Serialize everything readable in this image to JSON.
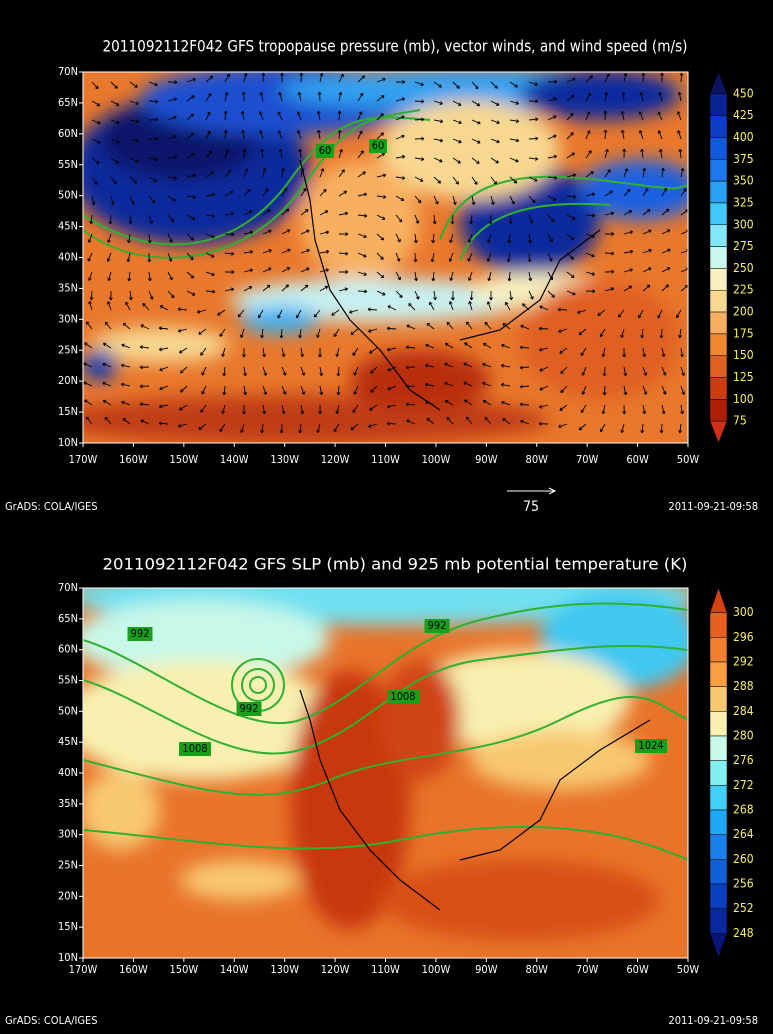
{
  "panels": [
    {
      "title": "2011092112F042 GFS tropopause pressure (mb), vector winds, and wind speed (m/s)",
      "lat_labels": [
        "70N",
        "65N",
        "60N",
        "55N",
        "50N",
        "45N",
        "40N",
        "35N",
        "30N",
        "25N",
        "20N",
        "15N",
        "10N"
      ],
      "lon_labels": [
        "170W",
        "160W",
        "150W",
        "140W",
        "130W",
        "120W",
        "110W",
        "100W",
        "90W",
        "80W",
        "70W",
        "60W",
        "50W"
      ],
      "colorbar_labels": [
        450,
        425,
        400,
        375,
        350,
        325,
        300,
        275,
        250,
        225,
        200,
        175,
        150,
        125,
        100,
        75
      ],
      "contour_labels": [
        "60",
        "60"
      ],
      "vector_scale_label": "75",
      "footer_left": "GrADS: COLA/IGES",
      "footer_right": "2011-09-21-09:58"
    },
    {
      "title": "2011092112F042 GFS SLP (mb) and 925 mb potential temperature (K)",
      "lat_labels": [
        "70N",
        "65N",
        "60N",
        "55N",
        "50N",
        "45N",
        "40N",
        "35N",
        "30N",
        "25N",
        "20N",
        "15N",
        "10N"
      ],
      "lon_labels": [
        "170W",
        "160W",
        "150W",
        "140W",
        "130W",
        "120W",
        "110W",
        "100W",
        "90W",
        "80W",
        "70W",
        "60W",
        "50W"
      ],
      "colorbar_labels": [
        300,
        296,
        292,
        288,
        284,
        280,
        276,
        272,
        268,
        264,
        260,
        256,
        252,
        248
      ],
      "contour_labels": [
        "992",
        "992",
        "1008",
        "992",
        "1008",
        "1024"
      ],
      "footer_left": "GrADS: COLA/IGES",
      "footer_right": "2011-09-21-09:58"
    }
  ]
}
